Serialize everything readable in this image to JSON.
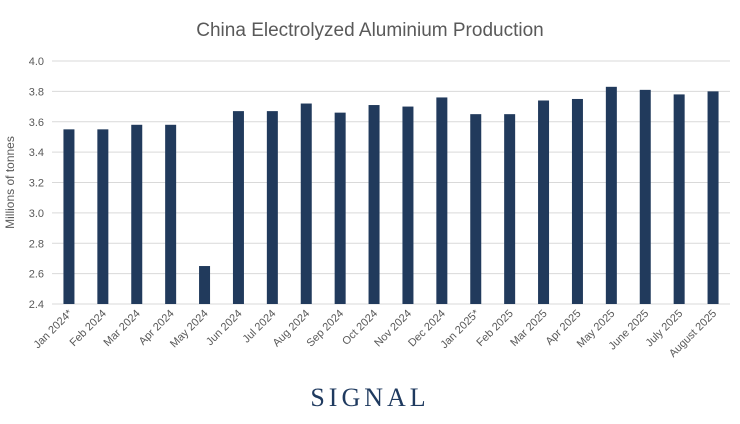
{
  "chart_data": {
    "type": "bar",
    "title": "China Electrolyzed Aluminium Production",
    "xlabel": "",
    "ylabel": "Millions of tonnes",
    "ylim": [
      2.4,
      4.0
    ],
    "yticks": [
      "2.4",
      "2.6",
      "2.8",
      "3.0",
      "3.2",
      "3.4",
      "3.6",
      "3.8",
      "4.0"
    ],
    "grid": true,
    "bar_color": "#213a5c",
    "categories": [
      "Jan 2024*",
      "Feb 2024",
      "Mar 2024",
      "Apr 2024",
      "May 2024",
      "Jun 2024",
      "Jul 2024",
      "Aug 2024",
      "Sep 2024",
      "Oct 2024",
      "Nov 2024",
      "Dec 2024",
      "Jan 2025*",
      "Feb 2025",
      "Mar 2025",
      "Apr 2025",
      "May 2025",
      "June 2025",
      "July 2025",
      "August 2025"
    ],
    "values": [
      3.55,
      3.55,
      3.58,
      3.58,
      2.65,
      3.67,
      3.67,
      3.72,
      3.66,
      3.71,
      3.7,
      3.76,
      3.65,
      3.65,
      3.74,
      3.75,
      3.83,
      3.81,
      3.78,
      3.8
    ]
  },
  "logo": "SIGNAL"
}
